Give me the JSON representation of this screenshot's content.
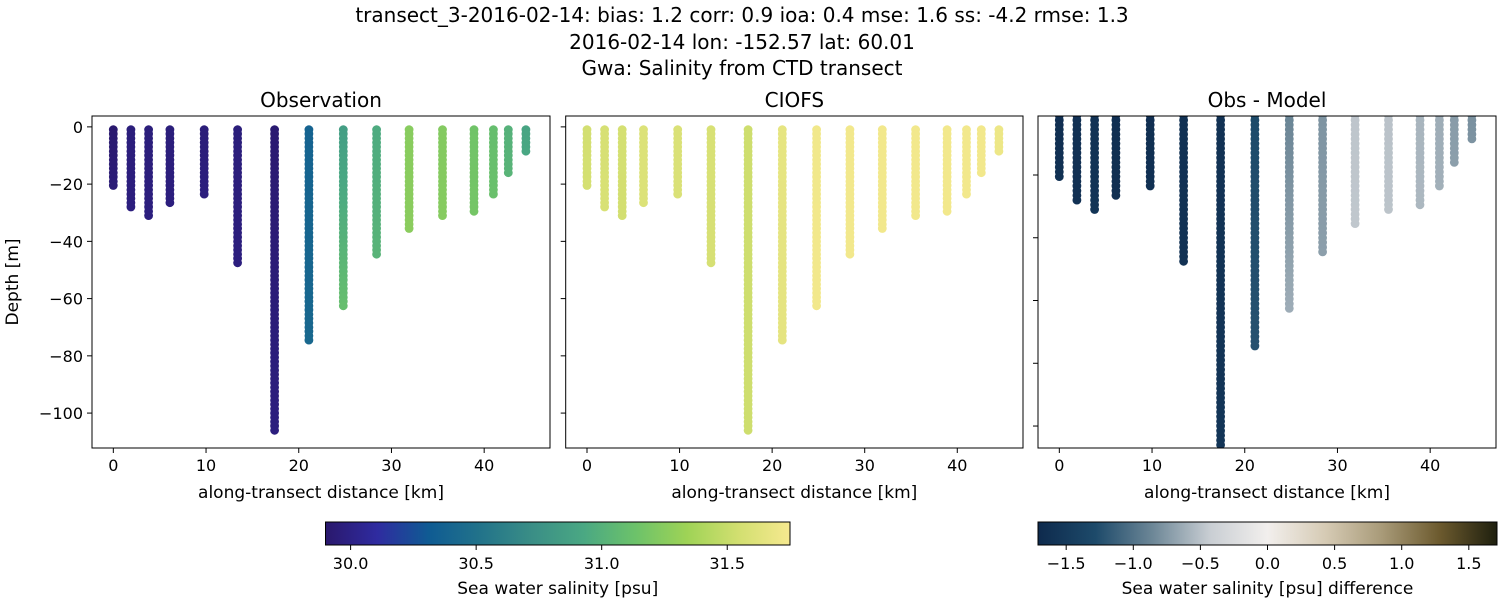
{
  "title_lines": [
    "transect_3-2016-02-14: bias: 1.2  corr: 0.9  ioa: 0.4  mse: 1.6  ss: -4.2  rmse: 1.3",
    "2016-02-14 lon: -152.57 lat: 60.01",
    "Gwa: Salinity from CTD transect"
  ],
  "chart_data": {
    "type": "scatter",
    "panels": [
      {
        "title": "Observation",
        "field": "obs",
        "xlabel": "along-transect distance [km]",
        "ylabel": "Depth [m]",
        "xlim": [
          -2.3,
          47.1
        ],
        "ylim": [
          -112.2,
          3.8
        ],
        "xticks": [
          0,
          10,
          20,
          30,
          40
        ],
        "yticks": [
          0,
          -20,
          -40,
          -60,
          -80,
          -100
        ],
        "ytick_labels": [
          "0",
          "−20",
          "−40",
          "−60",
          "−80",
          "−100"
        ],
        "show_yticklabels": true,
        "colormap": "salinity"
      },
      {
        "title": "CIOFS",
        "field": "model",
        "xlabel": "along-transect distance [km]",
        "xlim": [
          -2.3,
          47.1
        ],
        "ylim": [
          -112.2,
          3.8
        ],
        "xticks": [
          0,
          10,
          20,
          30,
          40
        ],
        "yticks": [
          0,
          -20,
          -40,
          -60,
          -80,
          -100
        ],
        "show_yticklabels": false,
        "colormap": "salinity"
      },
      {
        "title": "Obs - Model",
        "field": "diff",
        "xlabel": "along-transect distance [km]",
        "xlim": [
          -2.3,
          47.1
        ],
        "ylim": [
          -107,
          -1.2
        ],
        "xticks": [
          0,
          10,
          20,
          30,
          40
        ],
        "yticks": [
          -20,
          -40,
          -60,
          -80,
          -100
        ],
        "show_yticklabels": false,
        "colormap": "difference"
      }
    ],
    "profiles": [
      {
        "distance_km": 0.0,
        "max_depth_m": 20.5,
        "obs": [
          29.91,
          29.94
        ],
        "model": [
          31.55,
          31.56
        ]
      },
      {
        "distance_km": 1.9,
        "max_depth_m": 28.5,
        "obs": [
          29.96,
          29.97
        ],
        "model": [
          31.57,
          31.58
        ]
      },
      {
        "distance_km": 3.8,
        "max_depth_m": 31.5,
        "obs": [
          29.96,
          29.97
        ],
        "model": [
          31.56,
          31.55
        ]
      },
      {
        "distance_km": 6.1,
        "max_depth_m": 26.5,
        "obs": [
          29.96,
          29.97
        ],
        "model": [
          31.6,
          31.6
        ]
      },
      {
        "distance_km": 9.8,
        "max_depth_m": 24.5,
        "obs": [
          29.95,
          29.97
        ],
        "model": [
          31.59,
          31.59
        ]
      },
      {
        "distance_km": 13.4,
        "max_depth_m": 47.5,
        "obs": [
          29.96,
          29.97
        ],
        "model": [
          31.58,
          31.57
        ]
      },
      {
        "distance_km": 17.4,
        "max_depth_m": 106.5,
        "obs": [
          29.92,
          29.97
        ],
        "model": [
          31.53,
          31.53
        ]
      },
      {
        "distance_km": 21.1,
        "max_depth_m": 75.5,
        "obs": [
          30.38,
          30.42
        ],
        "model": [
          31.66,
          31.65
        ]
      },
      {
        "distance_km": 24.8,
        "max_depth_m": 62.5,
        "obs": [
          30.85,
          31.1
        ],
        "model": [
          31.72,
          31.73
        ]
      },
      {
        "distance_km": 28.4,
        "max_depth_m": 45.5,
        "obs": [
          30.95,
          31.02
        ],
        "model": [
          31.73,
          31.73
        ]
      },
      {
        "distance_km": 31.9,
        "max_depth_m": 35.5,
        "obs": [
          31.25,
          31.26
        ],
        "model": [
          31.73,
          31.73
        ]
      },
      {
        "distance_km": 35.5,
        "max_depth_m": 31.5,
        "obs": [
          31.23,
          31.24
        ],
        "model": [
          31.73,
          31.73
        ]
      },
      {
        "distance_km": 38.9,
        "max_depth_m": 29.5,
        "obs": [
          31.15,
          31.17
        ],
        "model": [
          31.73,
          31.73
        ]
      },
      {
        "distance_km": 41.0,
        "max_depth_m": 23.5,
        "obs": [
          31.1,
          31.12
        ],
        "model": [
          31.73,
          31.73
        ]
      },
      {
        "distance_km": 42.6,
        "max_depth_m": 16.5,
        "obs": [
          31.0,
          31.02
        ],
        "model": [
          31.73,
          31.73
        ]
      },
      {
        "distance_km": 44.5,
        "max_depth_m": 9.5,
        "obs": [
          30.9,
          30.92
        ],
        "model": [
          31.7,
          31.7
        ]
      }
    ],
    "colorbars": [
      {
        "label": "Sea water salinity [psu]",
        "range": [
          29.9,
          31.75
        ],
        "ticks": [
          30.0,
          30.5,
          31.0,
          31.5
        ],
        "tick_labels": [
          "30.0",
          "30.5",
          "31.0",
          "31.5"
        ],
        "stops": [
          "#2a186c",
          "#2f2ba0",
          "#0f5b93",
          "#22738a",
          "#3a8e86",
          "#4aa883",
          "#6cc26a",
          "#9ed356",
          "#d2df70",
          "#f6e98f"
        ]
      },
      {
        "label": "Sea water salinity [psu] difference",
        "range": [
          -1.71,
          1.71
        ],
        "ticks": [
          -1.5,
          -1.0,
          -0.5,
          0.0,
          0.5,
          1.0,
          1.5
        ],
        "tick_labels": [
          "−1.5",
          "−1.0",
          "−0.5",
          "0.0",
          "0.5",
          "1.0",
          "1.5"
        ],
        "stops": [
          "#0e2a4d",
          "#1d4a6a",
          "#6d8797",
          "#c9ced3",
          "#f2efed",
          "#d6cbb5",
          "#a89a78",
          "#6c5a2e",
          "#1e1f0e"
        ]
      }
    ]
  }
}
